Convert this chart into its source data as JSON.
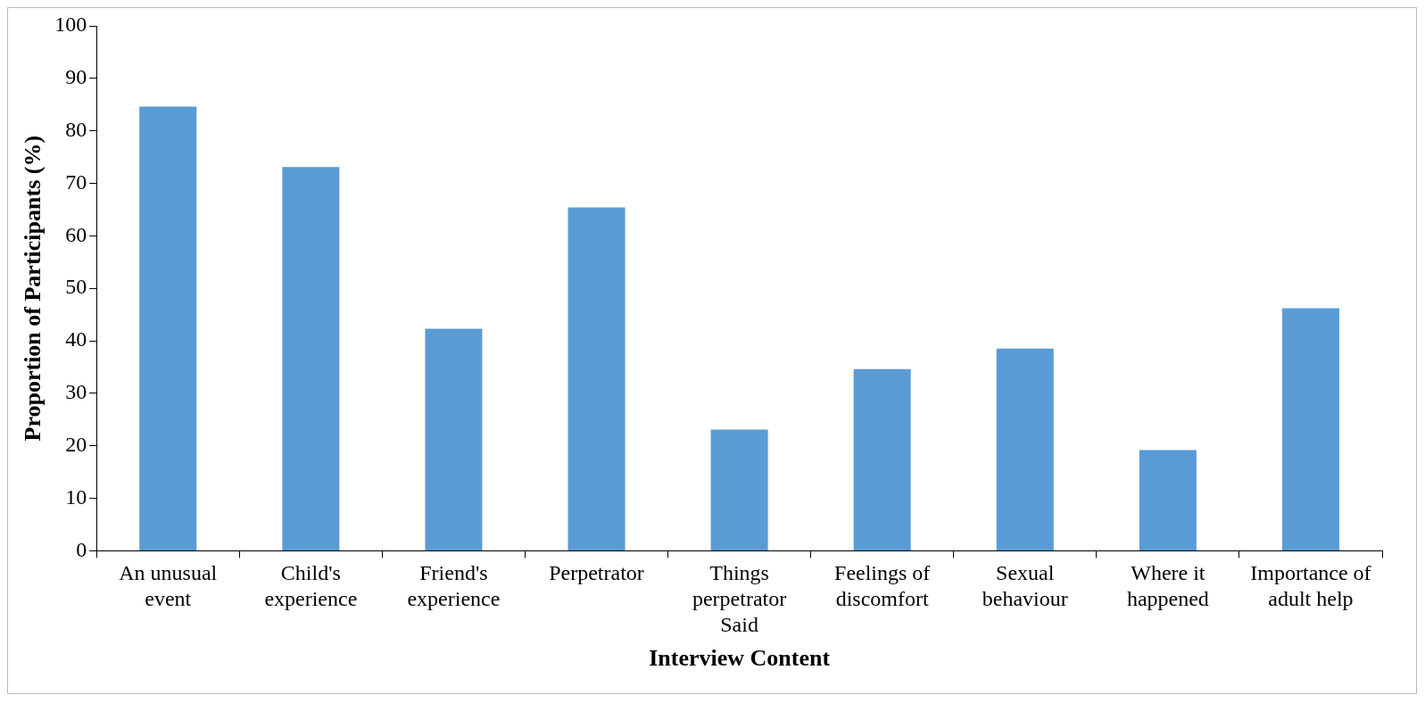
{
  "chart_data": {
    "type": "bar",
    "xlabel": "Interview Content",
    "ylabel": "Proportion of Participants (%)",
    "categories": [
      "An unusual event",
      "Child's experience",
      "Friend's experience",
      "Perpetrator",
      "Things perpetrator Said",
      "Feelings of discomfort",
      "Sexual behaviour",
      "Where it happened",
      "Importance of adult help"
    ],
    "values": [
      84.6,
      73.1,
      42.3,
      65.4,
      23.1,
      34.6,
      38.5,
      19.2,
      46.2
    ],
    "color": "#5b9bd5",
    "ylim": [
      0,
      100
    ],
    "yticks": [
      0,
      10,
      20,
      30,
      40,
      50,
      60,
      70,
      80,
      90,
      100
    ],
    "grid": false,
    "legend": false
  }
}
